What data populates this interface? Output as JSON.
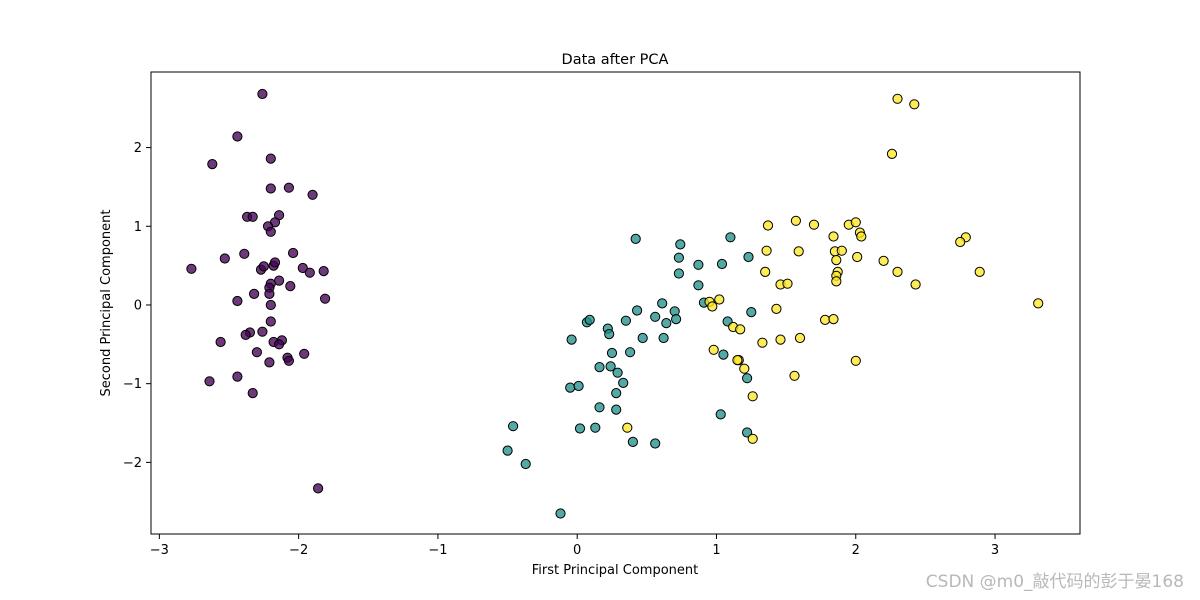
{
  "watermark": "CSDN @m0_敲代码的彭于晏168",
  "chart_data": {
    "type": "scatter",
    "title": "Data after PCA",
    "xlabel": "First Principal Component",
    "ylabel": "Second Principal Component",
    "xlim": [
      -3.06,
      3.61
    ],
    "ylim": [
      -2.91,
      2.96
    ],
    "xticks": [
      -3,
      -2,
      -1,
      0,
      1,
      2,
      3
    ],
    "yticks": [
      -2,
      -1,
      0,
      1,
      2
    ],
    "xtick_labels": [
      "−3",
      "−2",
      "−1",
      "0",
      "1",
      "2",
      "3"
    ],
    "ytick_labels": [
      "−2",
      "−1",
      "0",
      "1",
      "2"
    ],
    "grid": false,
    "legend": "none",
    "series": [
      {
        "color": "#440154",
        "points": [
          [
            -2.26,
            2.68
          ],
          [
            -2.44,
            2.14
          ],
          [
            -2.62,
            1.79
          ],
          [
            -2.2,
            1.86
          ],
          [
            -2.2,
            1.48
          ],
          [
            -2.07,
            1.49
          ],
          [
            -1.9,
            1.4
          ],
          [
            -2.37,
            1.12
          ],
          [
            -2.33,
            1.12
          ],
          [
            -2.14,
            1.14
          ],
          [
            -2.17,
            1.05
          ],
          [
            -2.22,
            1.0
          ],
          [
            -2.2,
            0.93
          ],
          [
            -2.04,
            0.66
          ],
          [
            -2.39,
            0.65
          ],
          [
            -2.77,
            0.46
          ],
          [
            -2.53,
            0.59
          ],
          [
            -2.27,
            0.45
          ],
          [
            -2.25,
            0.49
          ],
          [
            -2.18,
            0.5
          ],
          [
            -2.17,
            0.54
          ],
          [
            -1.97,
            0.47
          ],
          [
            -1.92,
            0.41
          ],
          [
            -1.82,
            0.43
          ],
          [
            -2.14,
            0.31
          ],
          [
            -2.2,
            0.27
          ],
          [
            -2.21,
            0.22
          ],
          [
            -2.06,
            0.24
          ],
          [
            -2.32,
            0.14
          ],
          [
            -2.21,
            0.14
          ],
          [
            -1.81,
            0.08
          ],
          [
            -2.44,
            0.05
          ],
          [
            -2.2,
            0.0
          ],
          [
            -2.2,
            -0.21
          ],
          [
            -2.26,
            -0.34
          ],
          [
            -2.35,
            -0.35
          ],
          [
            -2.38,
            -0.38
          ],
          [
            -2.56,
            -0.47
          ],
          [
            -2.18,
            -0.47
          ],
          [
            -2.12,
            -0.45
          ],
          [
            -2.14,
            -0.5
          ],
          [
            -2.3,
            -0.6
          ],
          [
            -1.96,
            -0.62
          ],
          [
            -2.08,
            -0.67
          ],
          [
            -2.07,
            -0.71
          ],
          [
            -2.21,
            -0.73
          ],
          [
            -2.44,
            -0.91
          ],
          [
            -2.64,
            -0.97
          ],
          [
            -2.33,
            -1.12
          ],
          [
            -1.86,
            -2.33
          ]
        ]
      },
      {
        "color": "#21918c",
        "points": [
          [
            0.42,
            0.84
          ],
          [
            0.74,
            0.77
          ],
          [
            1.1,
            0.86
          ],
          [
            0.73,
            0.6
          ],
          [
            1.23,
            0.61
          ],
          [
            0.87,
            0.51
          ],
          [
            1.04,
            0.52
          ],
          [
            0.73,
            0.4
          ],
          [
            0.87,
            0.25
          ],
          [
            0.61,
            0.02
          ],
          [
            0.91,
            0.03
          ],
          [
            0.43,
            -0.07
          ],
          [
            0.7,
            -0.08
          ],
          [
            1.25,
            -0.09
          ],
          [
            0.56,
            -0.15
          ],
          [
            0.07,
            -0.22
          ],
          [
            0.09,
            -0.19
          ],
          [
            0.35,
            -0.2
          ],
          [
            0.64,
            -0.23
          ],
          [
            0.71,
            -0.18
          ],
          [
            1.08,
            -0.21
          ],
          [
            0.22,
            -0.3
          ],
          [
            0.23,
            -0.37
          ],
          [
            0.47,
            -0.42
          ],
          [
            0.62,
            -0.42
          ],
          [
            -0.04,
            -0.44
          ],
          [
            0.25,
            -0.61
          ],
          [
            0.38,
            -0.6
          ],
          [
            1.05,
            -0.63
          ],
          [
            0.16,
            -0.79
          ],
          [
            0.24,
            -0.78
          ],
          [
            0.29,
            -0.86
          ],
          [
            0.33,
            -0.99
          ],
          [
            1.22,
            -0.93
          ],
          [
            -0.05,
            -1.05
          ],
          [
            0.01,
            -1.03
          ],
          [
            0.28,
            -1.12
          ],
          [
            0.16,
            -1.3
          ],
          [
            0.28,
            -1.33
          ],
          [
            1.03,
            -1.39
          ],
          [
            -0.46,
            -1.54
          ],
          [
            0.02,
            -1.57
          ],
          [
            0.13,
            -1.56
          ],
          [
            1.22,
            -1.62
          ],
          [
            0.4,
            -1.74
          ],
          [
            0.56,
            -1.76
          ],
          [
            -0.5,
            -1.85
          ],
          [
            -0.37,
            -2.02
          ],
          [
            -0.12,
            -2.65
          ]
        ]
      },
      {
        "color": "#fde725",
        "points": [
          [
            2.3,
            2.62
          ],
          [
            2.42,
            2.55
          ],
          [
            2.26,
            1.92
          ],
          [
            1.57,
            1.07
          ],
          [
            1.7,
            1.02
          ],
          [
            1.37,
            1.01
          ],
          [
            1.95,
            1.02
          ],
          [
            2.0,
            1.05
          ],
          [
            2.03,
            0.92
          ],
          [
            2.04,
            0.87
          ],
          [
            1.84,
            0.87
          ],
          [
            2.79,
            0.86
          ],
          [
            2.75,
            0.8
          ],
          [
            1.59,
            0.68
          ],
          [
            1.36,
            0.69
          ],
          [
            1.85,
            0.68
          ],
          [
            1.9,
            0.69
          ],
          [
            2.01,
            0.61
          ],
          [
            1.86,
            0.57
          ],
          [
            2.2,
            0.56
          ],
          [
            1.35,
            0.42
          ],
          [
            2.3,
            0.42
          ],
          [
            2.89,
            0.42
          ],
          [
            1.87,
            0.42
          ],
          [
            1.86,
            0.37
          ],
          [
            1.86,
            0.3
          ],
          [
            1.46,
            0.26
          ],
          [
            1.51,
            0.27
          ],
          [
            2.43,
            0.26
          ],
          [
            3.31,
            0.02
          ],
          [
            1.02,
            0.07
          ],
          [
            0.95,
            0.04
          ],
          [
            0.97,
            -0.02
          ],
          [
            1.43,
            -0.05
          ],
          [
            1.78,
            -0.19
          ],
          [
            1.84,
            -0.18
          ],
          [
            1.12,
            -0.28
          ],
          [
            1.17,
            -0.31
          ],
          [
            1.6,
            -0.42
          ],
          [
            1.46,
            -0.44
          ],
          [
            1.33,
            -0.48
          ],
          [
            0.98,
            -0.57
          ],
          [
            1.16,
            -0.7
          ],
          [
            1.15,
            -0.7
          ],
          [
            2.0,
            -0.71
          ],
          [
            1.2,
            -0.81
          ],
          [
            1.56,
            -0.9
          ],
          [
            1.26,
            -1.16
          ],
          [
            0.36,
            -1.56
          ],
          [
            1.26,
            -1.7
          ]
        ]
      }
    ]
  }
}
